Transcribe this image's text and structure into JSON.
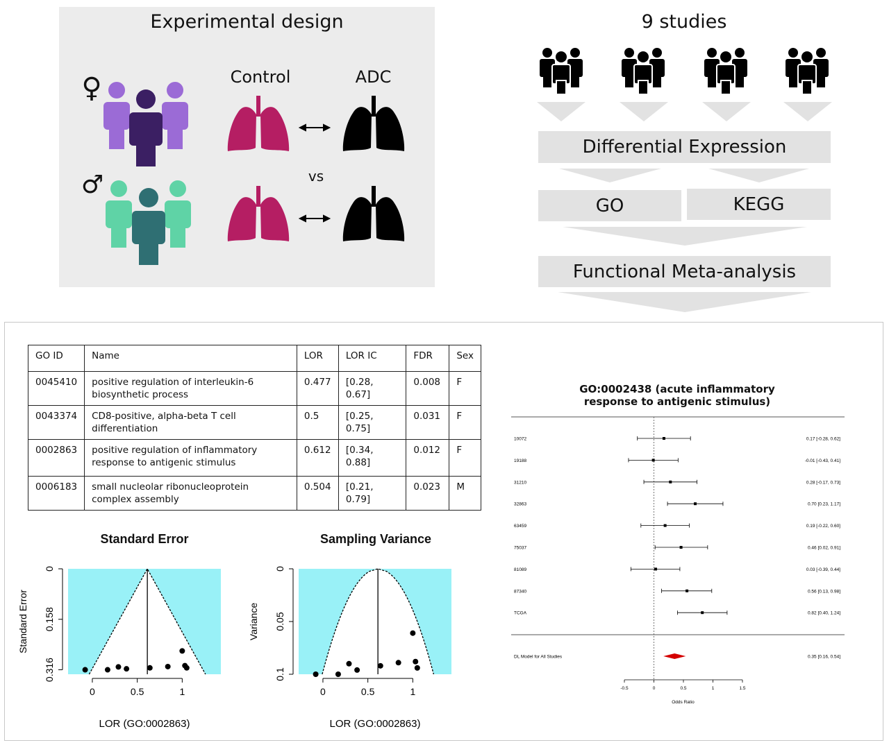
{
  "experimental_design": {
    "title": "Experimental design",
    "control_label": "Control",
    "adc_label": "ADC",
    "vs_label": "vs",
    "female_symbol": "♀",
    "male_symbol": "♂",
    "colors": {
      "female_light": "#9b6bd6",
      "female_dark": "#3b1f63",
      "male_light": "#5fd3a6",
      "male_dark": "#2f6f73",
      "lung_control": "#b51e63",
      "lung_adc": "#000000",
      "panel_bg": "#ececec"
    }
  },
  "pipeline": {
    "title": "9 studies",
    "step1": "Differential Expression",
    "step2a": "GO",
    "step2b": "KEGG",
    "step3": "Functional Meta-analysis"
  },
  "go_table": {
    "headers": [
      "GO ID",
      "Name",
      "LOR",
      "LOR IC",
      "FDR",
      "Sex"
    ],
    "rows": [
      [
        "0045410",
        "positive regulation of interleukin-6 biosynthetic process",
        "0.477",
        "[0.28, 0.67]",
        "0.008",
        "F"
      ],
      [
        "0043374",
        "CD8-positive, alpha-beta  T cell differentiation",
        "0.5",
        "[0.25, 0.75]",
        "0.031",
        "F"
      ],
      [
        "0002863",
        "positive regulation of inflammatory response to antigenic stimulus",
        "0.612",
        "[0.34, 0.88]",
        "0.012",
        "F"
      ],
      [
        "0006183",
        "small nucleolar ribonucleoprotein complex assembly",
        "0.504",
        "[0.21, 0.79]",
        "0.023",
        "M"
      ]
    ]
  },
  "chart_data": [
    {
      "type": "scatter",
      "title": "Standard Error",
      "xlabel": "LOR (GO:0002863)",
      "ylabel": "Standard Error",
      "xlim": [
        -0.27,
        1.43
      ],
      "ylim": [
        0,
        0.33
      ],
      "y_inverted": true,
      "x_ticks": [
        "0",
        "0.5",
        "1"
      ],
      "y_ticks": [
        "0",
        "0.158",
        "0.316"
      ],
      "center": 0.612,
      "points": [
        [
          -0.08,
          0.316
        ],
        [
          0.17,
          0.316
        ],
        [
          0.29,
          0.307
        ],
        [
          0.38,
          0.313
        ],
        [
          0.64,
          0.31
        ],
        [
          0.84,
          0.306
        ],
        [
          1.0,
          0.257
        ],
        [
          1.03,
          0.303
        ],
        [
          1.05,
          0.31
        ]
      ],
      "region_color": "#99f1f7"
    },
    {
      "type": "scatter",
      "title": "Sampling Variance",
      "xlabel": "LOR (GO:0002863)",
      "ylabel": "Variance",
      "xlim": [
        -0.27,
        1.43
      ],
      "ylim": [
        0,
        0.1
      ],
      "y_inverted": true,
      "x_ticks": [
        "0",
        "0.5",
        "1"
      ],
      "y_ticks": [
        "0",
        "0.05",
        "0.1"
      ],
      "center": 0.612,
      "points": [
        [
          -0.08,
          0.1
        ],
        [
          0.17,
          0.1
        ],
        [
          0.29,
          0.09
        ],
        [
          0.38,
          0.096
        ],
        [
          0.64,
          0.092
        ],
        [
          0.84,
          0.089
        ],
        [
          1.0,
          0.061
        ],
        [
          1.03,
          0.088
        ],
        [
          1.05,
          0.094
        ]
      ],
      "region_color": "#99f1f7"
    },
    {
      "type": "forest",
      "title_line1": "GO:0002438 (acute inflammatory",
      "title_line2": "response to antigenic stimulus)",
      "xlabel": "Odds Ratio",
      "xlim": [
        -0.5,
        1.5
      ],
      "x_ticks": [
        "-0.5",
        "0",
        "0.5",
        "1",
        "1.5"
      ],
      "studies": [
        {
          "label": "10072",
          "est": 0.17,
          "lo": -0.28,
          "hi": 0.62,
          "text": "0.17 [-0.28, 0.62]"
        },
        {
          "label": "19188",
          "est": -0.01,
          "lo": -0.43,
          "hi": 0.41,
          "text": "-0.01 [-0.43, 0.41]"
        },
        {
          "label": "31210",
          "est": 0.28,
          "lo": -0.17,
          "hi": 0.73,
          "text": "0.28 [-0.17, 0.73]"
        },
        {
          "label": "32863",
          "est": 0.7,
          "lo": 0.23,
          "hi": 1.17,
          "text": "0.70 [0.23, 1.17]"
        },
        {
          "label": "63459",
          "est": 0.19,
          "lo": -0.22,
          "hi": 0.6,
          "text": "0.19 [-0.22, 0.60]"
        },
        {
          "label": "75037",
          "est": 0.46,
          "lo": 0.02,
          "hi": 0.91,
          "text": "0.46 [0.02, 0.91]"
        },
        {
          "label": "81089",
          "est": 0.03,
          "lo": -0.39,
          "hi": 0.44,
          "text": "0.03 [-0.39, 0.44]"
        },
        {
          "label": "87340",
          "est": 0.56,
          "lo": 0.13,
          "hi": 0.98,
          "text": "0.56 [0.13, 0.98]"
        },
        {
          "label": "TCGA",
          "est": 0.82,
          "lo": 0.4,
          "hi": 1.24,
          "text": "0.82 [0.40, 1.24]"
        }
      ],
      "summary": {
        "label": "DL Model for All Studies",
        "est": 0.35,
        "lo": 0.16,
        "hi": 0.54,
        "text": "0.35 [0.16, 0.54]",
        "color": "#d40000"
      }
    }
  ]
}
